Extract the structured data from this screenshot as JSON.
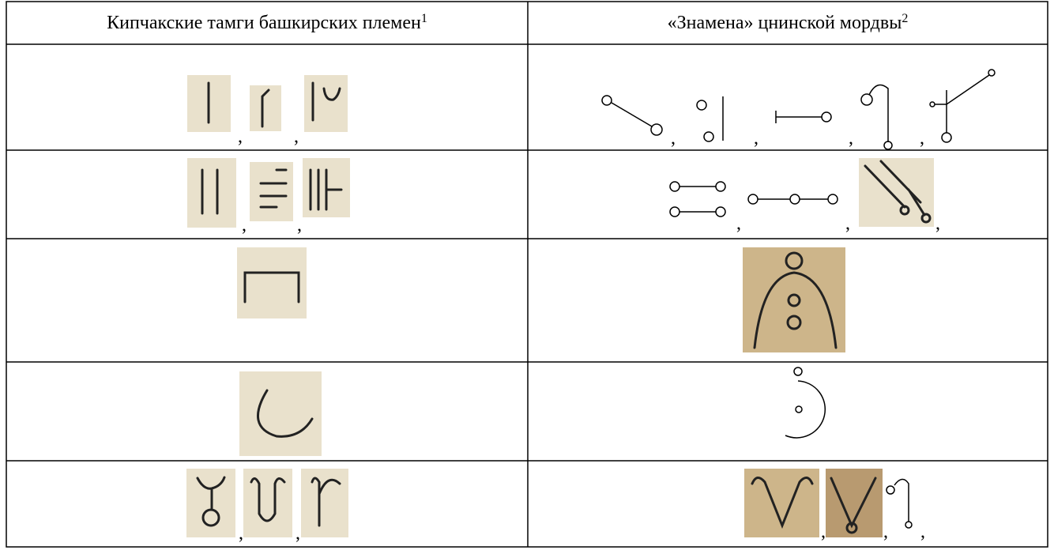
{
  "header": [
    {
      "text": "Кипчакские тамги башкирских племен",
      "note": "1"
    },
    {
      "text": "«Знамена» цнинской мордвы",
      "note": "2"
    }
  ],
  "separator": ","
}
